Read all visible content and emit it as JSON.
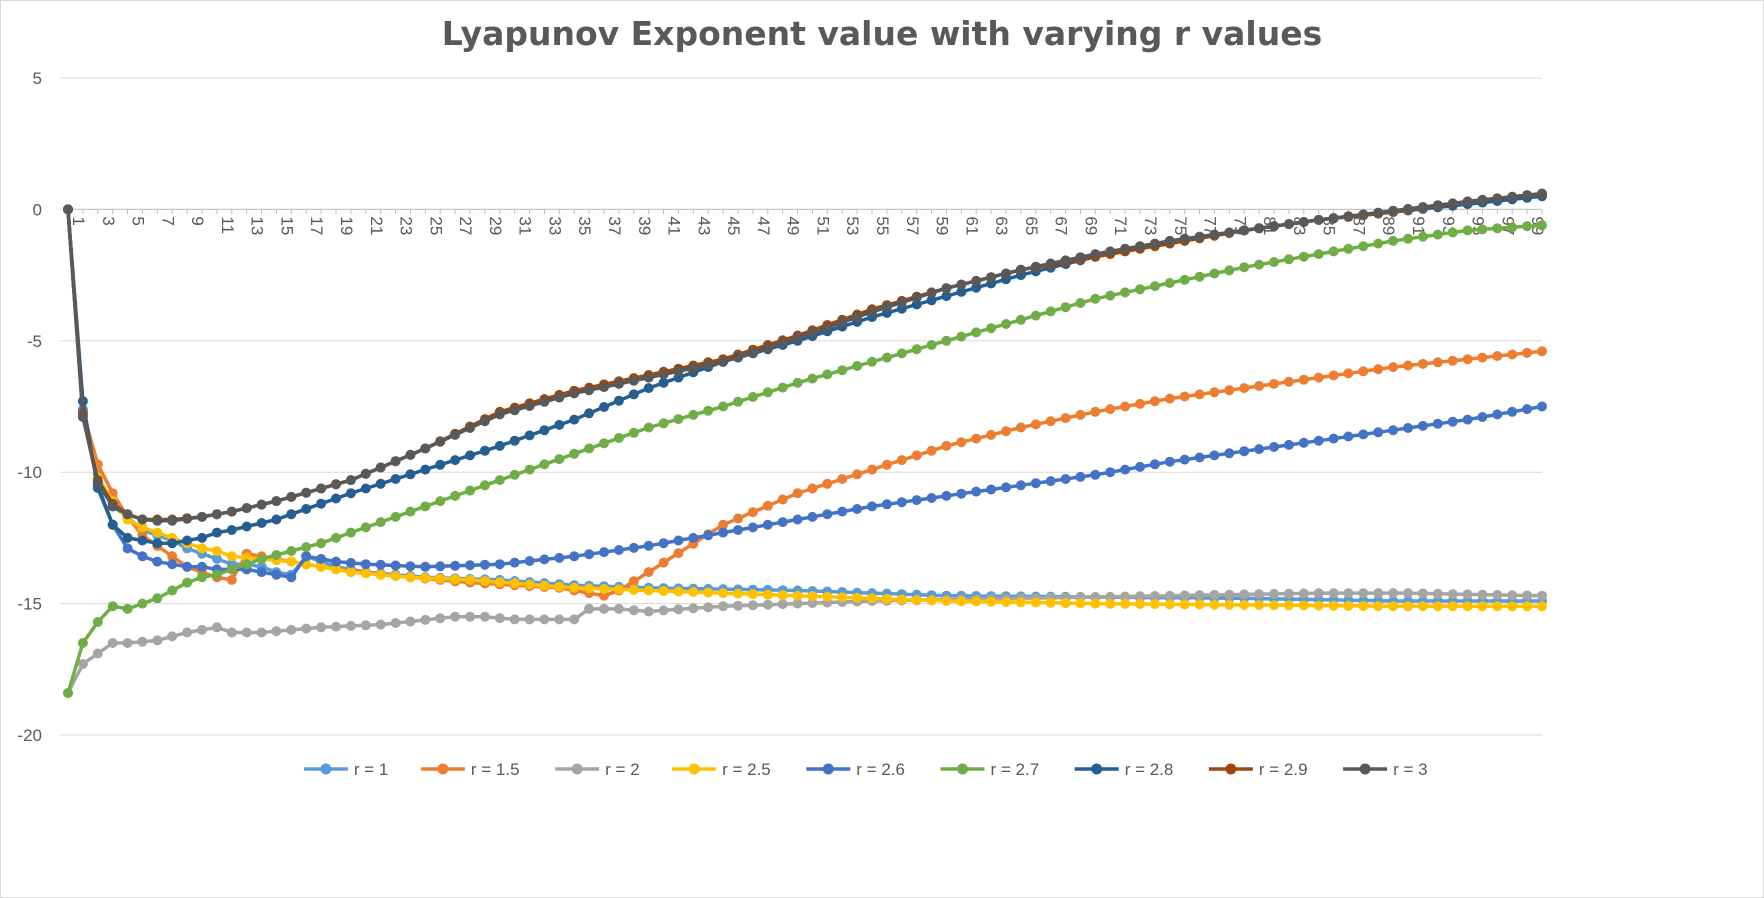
{
  "chart_data": {
    "type": "line",
    "title": "Lyapunov Exponent value with varying r values",
    "xlabel": "",
    "ylabel": "",
    "ylim": [
      -20,
      5
    ],
    "y_ticks": [
      5,
      0,
      -5,
      -10,
      -15,
      -20
    ],
    "x_range": [
      1,
      100
    ],
    "x_tick_labels": [
      "1",
      "3",
      "5",
      "7",
      "9",
      "11",
      "13",
      "15",
      "17",
      "19",
      "21",
      "23",
      "25",
      "27",
      "29",
      "31",
      "33",
      "35",
      "37",
      "39",
      "41",
      "43",
      "45",
      "47",
      "49",
      "51",
      "53",
      "55",
      "57",
      "59",
      "61",
      "63",
      "65",
      "67",
      "69",
      "71",
      "73",
      "75",
      "77",
      "79",
      "81",
      "83",
      "85",
      "87",
      "89",
      "91",
      "93",
      "95",
      "97",
      "99"
    ],
    "grid": "horizontal",
    "legend_position": "bottom",
    "series": [
      {
        "name": "r = 1",
        "color": "#5B9BD5",
        "anchors": [
          [
            1,
            0
          ],
          [
            2,
            -7.6
          ],
          [
            3,
            -10.1
          ],
          [
            4,
            -11.3
          ],
          [
            5,
            -11.7
          ],
          [
            6,
            -12.2
          ],
          [
            7,
            -12.4
          ],
          [
            8,
            -12.6
          ],
          [
            9,
            -12.9
          ],
          [
            10,
            -13.1
          ],
          [
            11,
            -13.3
          ],
          [
            12,
            -13.5
          ],
          [
            13,
            -13.5
          ],
          [
            14,
            -13.6
          ],
          [
            15,
            -13.8
          ],
          [
            16,
            -13.9
          ],
          [
            17,
            -13.2
          ],
          [
            18,
            -13.4
          ],
          [
            19,
            -13.6
          ],
          [
            20,
            -13.7
          ],
          [
            21,
            -13.8
          ],
          [
            23,
            -13.9
          ],
          [
            25,
            -14.0
          ],
          [
            30,
            -14.1
          ],
          [
            35,
            -14.3
          ],
          [
            40,
            -14.4
          ],
          [
            50,
            -14.5
          ],
          [
            60,
            -14.7
          ],
          [
            80,
            -14.8
          ],
          [
            90,
            -14.9
          ],
          [
            100,
            -14.9
          ]
        ]
      },
      {
        "name": "r = 1.5",
        "color": "#ED7D31",
        "anchors": [
          [
            1,
            0
          ],
          [
            2,
            -7.7
          ],
          [
            3,
            -9.7
          ],
          [
            4,
            -10.8
          ],
          [
            5,
            -11.7
          ],
          [
            6,
            -12.4
          ],
          [
            7,
            -12.8
          ],
          [
            8,
            -13.2
          ],
          [
            9,
            -13.6
          ],
          [
            10,
            -13.8
          ],
          [
            11,
            -14.0
          ],
          [
            12,
            -14.1
          ],
          [
            13,
            -13.1
          ],
          [
            14,
            -13.2
          ],
          [
            15,
            -13.3
          ],
          [
            18,
            -13.6
          ],
          [
            22,
            -13.9
          ],
          [
            28,
            -14.2
          ],
          [
            34,
            -14.4
          ],
          [
            37,
            -14.7
          ],
          [
            38,
            -14.5
          ],
          [
            40,
            -13.8
          ],
          [
            45,
            -12.0
          ],
          [
            50,
            -10.8
          ],
          [
            55,
            -9.9
          ],
          [
            60,
            -9.0
          ],
          [
            65,
            -8.3
          ],
          [
            70,
            -7.7
          ],
          [
            75,
            -7.2
          ],
          [
            80,
            -6.8
          ],
          [
            85,
            -6.4
          ],
          [
            90,
            -6.0
          ],
          [
            95,
            -5.7
          ],
          [
            100,
            -5.4
          ]
        ]
      },
      {
        "name": "r = 2",
        "color": "#A5A5A5",
        "anchors": [
          [
            1,
            -18.4
          ],
          [
            2,
            -17.3
          ],
          [
            3,
            -16.9
          ],
          [
            4,
            -16.5
          ],
          [
            5,
            -16.5
          ],
          [
            7,
            -16.4
          ],
          [
            9,
            -16.1
          ],
          [
            11,
            -15.9
          ],
          [
            12,
            -16.1
          ],
          [
            14,
            -16.1
          ],
          [
            18,
            -15.9
          ],
          [
            22,
            -15.8
          ],
          [
            27,
            -15.5
          ],
          [
            29,
            -15.5
          ],
          [
            31,
            -15.6
          ],
          [
            35,
            -15.6
          ],
          [
            36,
            -15.2
          ],
          [
            38,
            -15.2
          ],
          [
            40,
            -15.3
          ],
          [
            45,
            -15.1
          ],
          [
            55,
            -14.9
          ],
          [
            65,
            -14.8
          ],
          [
            75,
            -14.7
          ],
          [
            85,
            -14.6
          ],
          [
            91,
            -14.6
          ],
          [
            95,
            -14.65
          ],
          [
            100,
            -14.7
          ]
        ]
      },
      {
        "name": "r = 2.5",
        "color": "#FFC000",
        "anchors": [
          [
            1,
            0
          ],
          [
            2,
            -7.7
          ],
          [
            3,
            -10.2
          ],
          [
            4,
            -11.1
          ],
          [
            5,
            -11.8
          ],
          [
            6,
            -12.1
          ],
          [
            7,
            -12.3
          ],
          [
            8,
            -12.5
          ],
          [
            9,
            -12.7
          ],
          [
            10,
            -12.9
          ],
          [
            11,
            -13.0
          ],
          [
            12,
            -13.2
          ],
          [
            14,
            -13.3
          ],
          [
            16,
            -13.4
          ],
          [
            18,
            -13.6
          ],
          [
            20,
            -13.8
          ],
          [
            24,
            -14.0
          ],
          [
            28,
            -14.1
          ],
          [
            35,
            -14.4
          ],
          [
            40,
            -14.5
          ],
          [
            50,
            -14.7
          ],
          [
            60,
            -14.9
          ],
          [
            70,
            -15.0
          ],
          [
            80,
            -15.05
          ],
          [
            90,
            -15.1
          ],
          [
            100,
            -15.1
          ]
        ]
      },
      {
        "name": "r = 2.6",
        "color": "#4472C4",
        "anchors": [
          [
            1,
            0
          ],
          [
            2,
            -7.7
          ],
          [
            3,
            -10.5
          ],
          [
            4,
            -12.0
          ],
          [
            5,
            -12.9
          ],
          [
            6,
            -13.2
          ],
          [
            7,
            -13.4
          ],
          [
            8,
            -13.5
          ],
          [
            9,
            -13.6
          ],
          [
            10,
            -13.6
          ],
          [
            11,
            -13.7
          ],
          [
            13,
            -13.7
          ],
          [
            15,
            -13.9
          ],
          [
            16,
            -14.0
          ],
          [
            17,
            -13.2
          ],
          [
            18,
            -13.3
          ],
          [
            19,
            -13.4
          ],
          [
            21,
            -13.5
          ],
          [
            25,
            -13.6
          ],
          [
            30,
            -13.5
          ],
          [
            35,
            -13.2
          ],
          [
            40,
            -12.8
          ],
          [
            45,
            -12.3
          ],
          [
            50,
            -11.8
          ],
          [
            55,
            -11.3
          ],
          [
            60,
            -10.9
          ],
          [
            65,
            -10.5
          ],
          [
            70,
            -10.1
          ],
          [
            75,
            -9.6
          ],
          [
            80,
            -9.2
          ],
          [
            85,
            -8.8
          ],
          [
            90,
            -8.4
          ],
          [
            95,
            -8.0
          ],
          [
            100,
            -7.5
          ]
        ]
      },
      {
        "name": "r = 2.7",
        "color": "#70AD47",
        "anchors": [
          [
            1,
            -18.4
          ],
          [
            2,
            -16.5
          ],
          [
            3,
            -15.7
          ],
          [
            4,
            -15.1
          ],
          [
            5,
            -15.2
          ],
          [
            6,
            -15.0
          ],
          [
            7,
            -14.8
          ],
          [
            8,
            -14.5
          ],
          [
            9,
            -14.2
          ],
          [
            10,
            -14.0
          ],
          [
            11,
            -13.9
          ],
          [
            12,
            -13.7
          ],
          [
            14,
            -13.3
          ],
          [
            16,
            -13.0
          ],
          [
            18,
            -12.7
          ],
          [
            20,
            -12.3
          ],
          [
            25,
            -11.3
          ],
          [
            30,
            -10.3
          ],
          [
            35,
            -9.3
          ],
          [
            40,
            -8.3
          ],
          [
            45,
            -7.5
          ],
          [
            50,
            -6.6
          ],
          [
            55,
            -5.8
          ],
          [
            60,
            -5.0
          ],
          [
            65,
            -4.2
          ],
          [
            70,
            -3.4
          ],
          [
            75,
            -2.8
          ],
          [
            80,
            -2.2
          ],
          [
            85,
            -1.7
          ],
          [
            90,
            -1.2
          ],
          [
            95,
            -0.8
          ],
          [
            100,
            -0.6
          ]
        ]
      },
      {
        "name": "r = 2.8",
        "color": "#255E91",
        "anchors": [
          [
            1,
            0
          ],
          [
            2,
            -7.3
          ],
          [
            3,
            -10.6
          ],
          [
            4,
            -12.0
          ],
          [
            5,
            -12.5
          ],
          [
            6,
            -12.6
          ],
          [
            7,
            -12.7
          ],
          [
            8,
            -12.7
          ],
          [
            9,
            -12.6
          ],
          [
            10,
            -12.5
          ],
          [
            11,
            -12.3
          ],
          [
            12,
            -12.2
          ],
          [
            15,
            -11.8
          ],
          [
            20,
            -10.8
          ],
          [
            25,
            -9.9
          ],
          [
            30,
            -9.0
          ],
          [
            35,
            -8.0
          ],
          [
            40,
            -6.8
          ],
          [
            45,
            -5.8
          ],
          [
            50,
            -5.0
          ],
          [
            55,
            -4.1
          ],
          [
            60,
            -3.3
          ],
          [
            65,
            -2.5
          ],
          [
            70,
            -1.8
          ],
          [
            75,
            -1.2
          ],
          [
            80,
            -0.8
          ],
          [
            85,
            -0.4
          ],
          [
            90,
            -0.1
          ],
          [
            95,
            0.2
          ],
          [
            100,
            0.5
          ]
        ]
      },
      {
        "name": "r = 2.9",
        "color": "#9E480E",
        "anchors": [
          [
            1,
            0
          ],
          [
            2,
            -7.8
          ],
          [
            3,
            -10.3
          ],
          [
            4,
            -11.2
          ],
          [
            5,
            -11.6
          ],
          [
            6,
            -11.8
          ],
          [
            7,
            -11.8
          ],
          [
            8,
            -11.8
          ],
          [
            10,
            -11.7
          ],
          [
            12,
            -11.5
          ],
          [
            15,
            -11.1
          ],
          [
            20,
            -10.3
          ],
          [
            25,
            -9.1
          ],
          [
            30,
            -7.7
          ],
          [
            35,
            -6.9
          ],
          [
            40,
            -6.3
          ],
          [
            45,
            -5.7
          ],
          [
            50,
            -4.8
          ],
          [
            55,
            -3.8
          ],
          [
            60,
            -3.0
          ],
          [
            65,
            -2.3
          ],
          [
            70,
            -1.8
          ],
          [
            75,
            -1.3
          ],
          [
            80,
            -0.8
          ],
          [
            85,
            -0.4
          ],
          [
            90,
            -0.1
          ],
          [
            95,
            0.3
          ],
          [
            100,
            0.6
          ]
        ]
      },
      {
        "name": "r = 3",
        "color": "#595959",
        "anchors": [
          [
            1,
            0
          ],
          [
            2,
            -7.9
          ],
          [
            3,
            -10.4
          ],
          [
            4,
            -11.3
          ],
          [
            5,
            -11.6
          ],
          [
            6,
            -11.8
          ],
          [
            7,
            -11.85
          ],
          [
            8,
            -11.85
          ],
          [
            10,
            -11.7
          ],
          [
            12,
            -11.5
          ],
          [
            15,
            -11.1
          ],
          [
            20,
            -10.3
          ],
          [
            25,
            -9.1
          ],
          [
            30,
            -7.8
          ],
          [
            35,
            -7.0
          ],
          [
            40,
            -6.4
          ],
          [
            45,
            -5.8
          ],
          [
            50,
            -4.9
          ],
          [
            55,
            -3.9
          ],
          [
            60,
            -3.0
          ],
          [
            65,
            -2.3
          ],
          [
            70,
            -1.7
          ],
          [
            75,
            -1.2
          ],
          [
            80,
            -0.8
          ],
          [
            85,
            -0.4
          ],
          [
            90,
            -0.05
          ],
          [
            95,
            0.3
          ],
          [
            100,
            0.6
          ]
        ]
      }
    ]
  }
}
